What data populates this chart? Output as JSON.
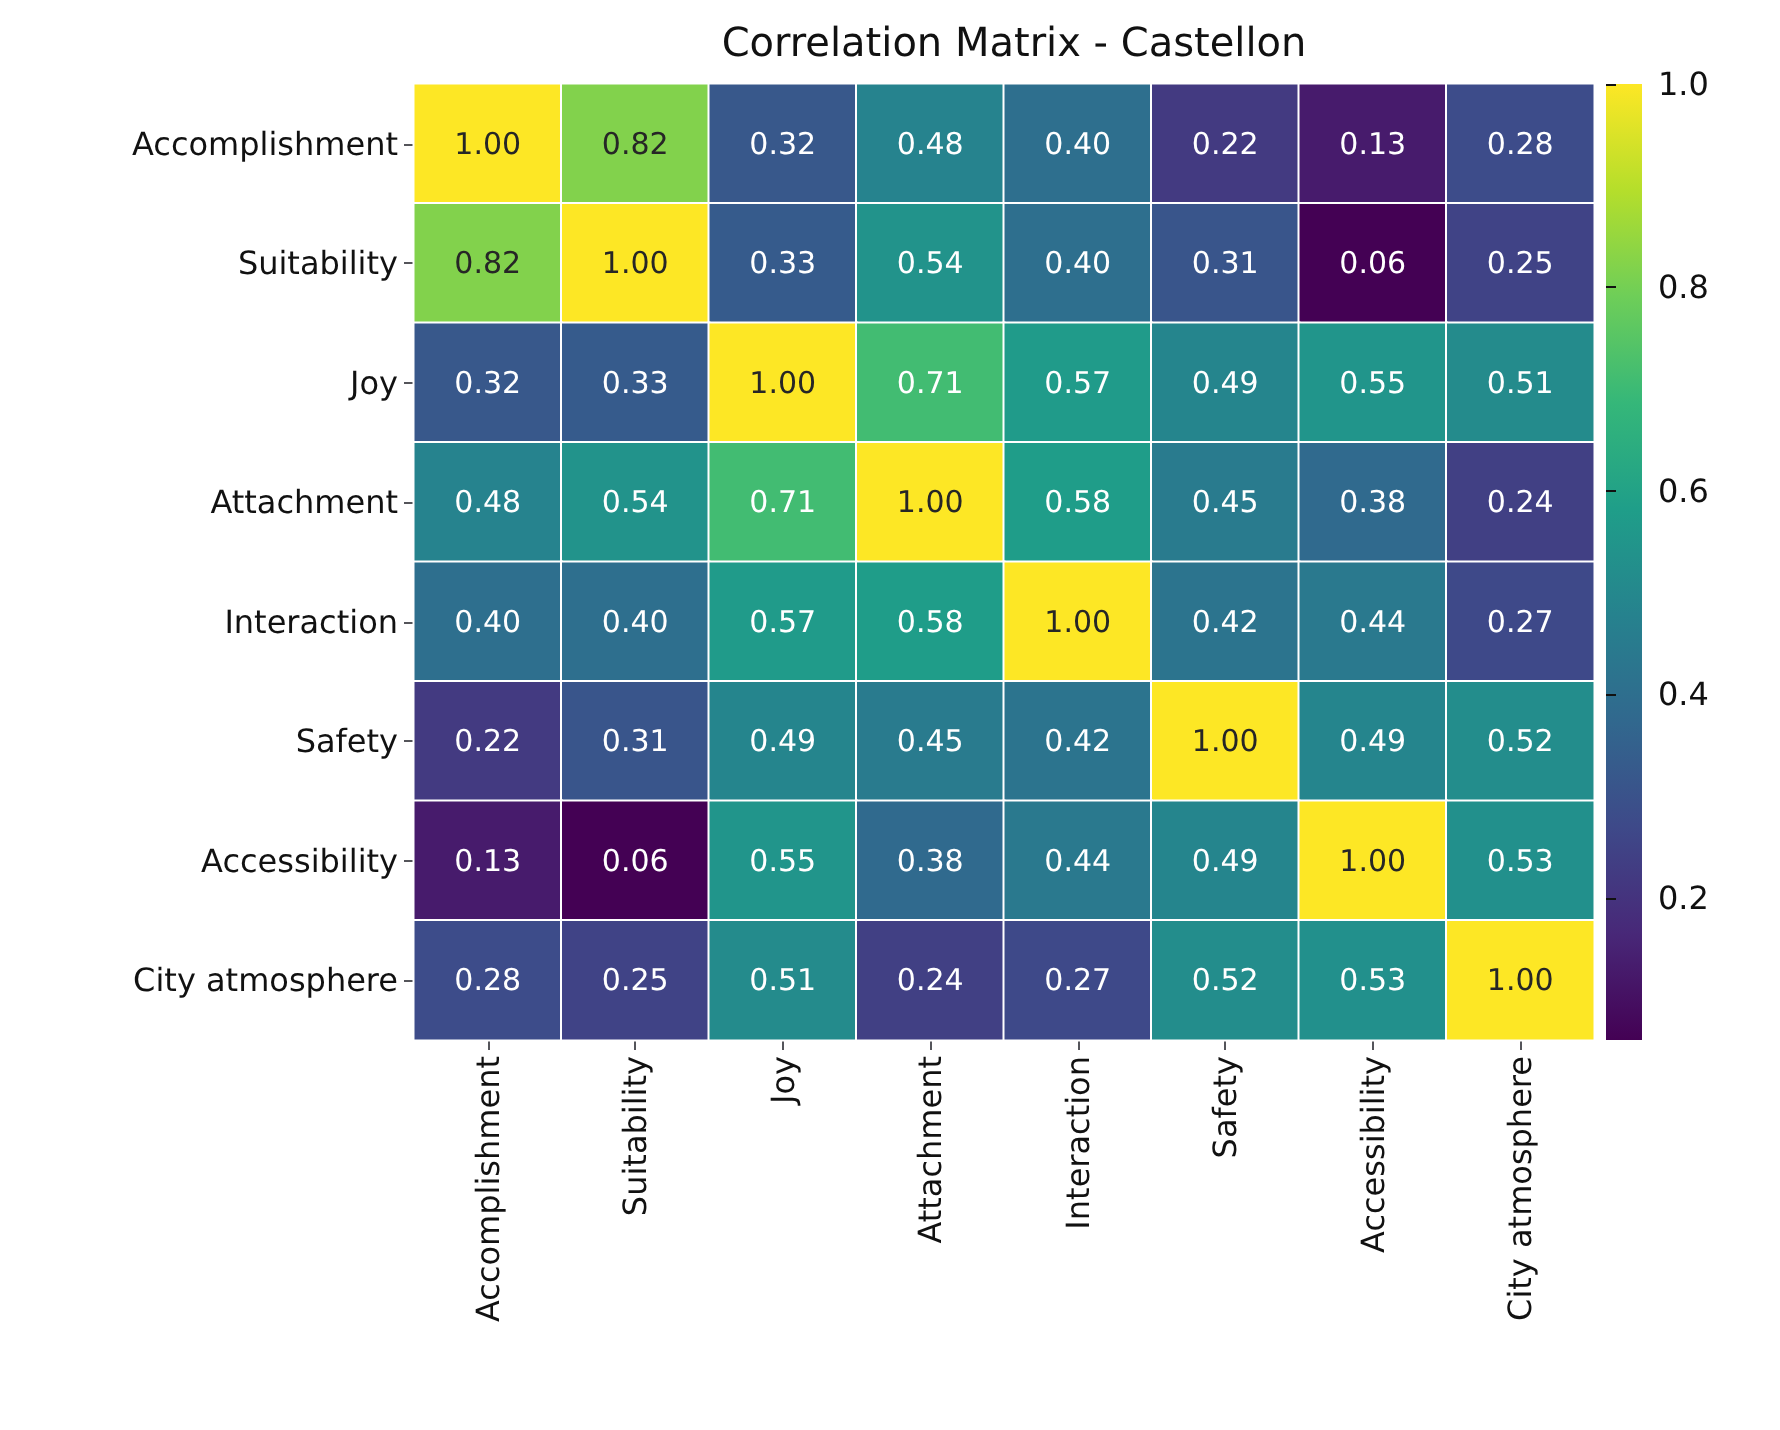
{
  "chart_data": {
    "type": "heatmap",
    "title": "Correlation Matrix - Castellon",
    "categories": [
      "Accomplishment",
      "Suitability",
      "Joy",
      "Attachment",
      "Interaction",
      "Safety",
      "Accessibility",
      "City atmosphere"
    ],
    "y_categories": [
      "Accomplishment",
      "Suitability",
      "Joy",
      "Attachment",
      "Interaction",
      "Safety",
      "Accessibility",
      "City atmosphere"
    ],
    "cells": [
      [
        1.0,
        0.82,
        0.32,
        0.48,
        0.4,
        0.22,
        0.13,
        0.28
      ],
      [
        0.82,
        1.0,
        0.33,
        0.54,
        0.4,
        0.31,
        0.06,
        0.25
      ],
      [
        0.32,
        0.33,
        1.0,
        0.71,
        0.57,
        0.49,
        0.55,
        0.51
      ],
      [
        0.48,
        0.54,
        0.71,
        1.0,
        0.58,
        0.45,
        0.38,
        0.24
      ],
      [
        0.4,
        0.4,
        0.57,
        0.58,
        1.0,
        0.42,
        0.44,
        0.27
      ],
      [
        0.22,
        0.31,
        0.49,
        0.45,
        0.42,
        1.0,
        0.49,
        0.52
      ],
      [
        0.13,
        0.06,
        0.55,
        0.38,
        0.44,
        0.49,
        1.0,
        0.53
      ],
      [
        0.28,
        0.25,
        0.51,
        0.24,
        0.27,
        0.52,
        0.53,
        1.0
      ]
    ],
    "cell_labels": [
      [
        "1.00",
        "0.82",
        "0.32",
        "0.48",
        "0.40",
        "0.22",
        "0.13",
        "0.28"
      ],
      [
        "0.82",
        "1.00",
        "0.33",
        "0.54",
        "0.40",
        "0.31",
        "0.06",
        "0.25"
      ],
      [
        "0.32",
        "0.33",
        "1.00",
        "0.71",
        "0.57",
        "0.49",
        "0.55",
        "0.51"
      ],
      [
        "0.48",
        "0.54",
        "0.71",
        "1.00",
        "0.58",
        "0.45",
        "0.38",
        "0.24"
      ],
      [
        "0.40",
        "0.40",
        "0.57",
        "0.58",
        "1.00",
        "0.42",
        "0.44",
        "0.27"
      ],
      [
        "0.22",
        "0.31",
        "0.49",
        "0.45",
        "0.42",
        "1.00",
        "0.49",
        "0.52"
      ],
      [
        "0.13",
        "0.06",
        "0.55",
        "0.38",
        "0.44",
        "0.49",
        "1.00",
        "0.53"
      ],
      [
        "0.28",
        "0.25",
        "0.51",
        "0.24",
        "0.27",
        "0.52",
        "0.53",
        "1.00"
      ]
    ],
    "clim": [
      0.06,
      1.0
    ],
    "cticks": [
      0.2,
      0.4,
      0.6,
      0.8,
      {
        "value": 1.0,
        "label": "1.0"
      }
    ]
  }
}
